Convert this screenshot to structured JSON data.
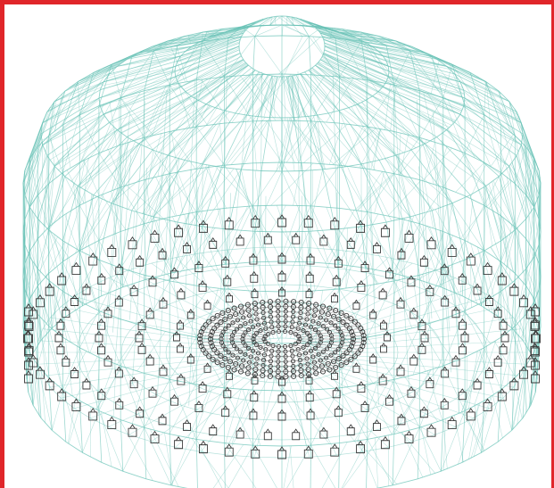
{
  "figure": {
    "kind": "3D wireframe finite-element mesh with support nodes",
    "colors": {
      "frame": "#e0262a",
      "mesh": "#6cc4b8",
      "supports": "#3a3a3a",
      "background": "#ffffff"
    }
  }
}
